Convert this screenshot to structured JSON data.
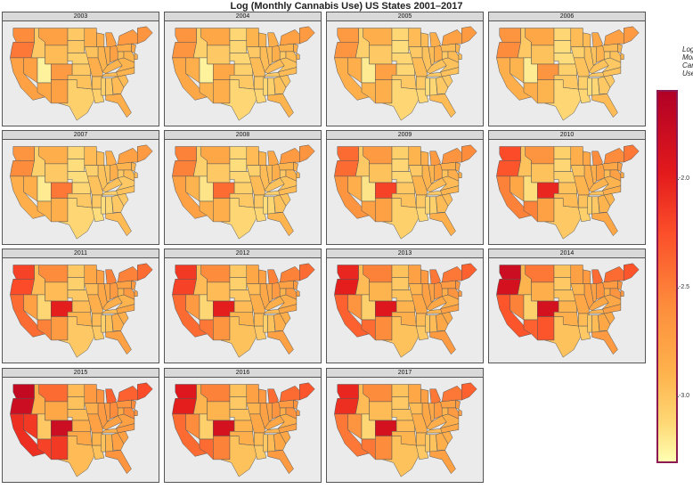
{
  "chart_data": {
    "type": "heatmap",
    "title": "Log (Monthly Cannabis Use) US States 2001–2017",
    "legend": {
      "title": "Log (Last Month Cannabis Use)",
      "position": "right",
      "ticks": [
        "-2.0",
        "-2.5",
        "-3.0"
      ],
      "tick_values": [
        -2.0,
        -2.5,
        -3.0
      ],
      "range": [
        -3.3,
        -1.6
      ],
      "palette": [
        "#ffffb2",
        "#fed976",
        "#feb24c",
        "#fd8d3c",
        "#fc4e2a",
        "#e31a1c",
        "#b10026"
      ]
    },
    "facets": [
      "2003",
      "2004",
      "2005",
      "2006",
      "2007",
      "2008",
      "2009",
      "2010",
      "2011",
      "2012",
      "2013",
      "2014",
      "2015",
      "2016",
      "2017"
    ],
    "regions": [
      "WA",
      "OR",
      "CA",
      "NV",
      "ID",
      "MT",
      "WY",
      "UT",
      "CO",
      "AZ",
      "NM",
      "ND",
      "SD",
      "NE",
      "KS",
      "OK",
      "TX",
      "MN",
      "IA",
      "MO",
      "AR",
      "LA",
      "WI",
      "IL",
      "MI",
      "IN",
      "OH",
      "KY",
      "TN",
      "MS",
      "AL",
      "GA",
      "FL",
      "SC",
      "NC",
      "VA",
      "WV",
      "PA",
      "NY",
      "NJ",
      "MD",
      "DE",
      "New England"
    ],
    "values": {
      "2003": [
        -2.45,
        -2.35,
        -2.6,
        -2.6,
        -2.9,
        -2.6,
        -2.8,
        -3.2,
        -2.55,
        -2.65,
        -2.6,
        -2.9,
        -2.9,
        -2.95,
        -2.9,
        -2.85,
        -2.95,
        -2.7,
        -2.85,
        -2.7,
        -2.85,
        -2.95,
        -2.7,
        -2.75,
        -2.6,
        -2.7,
        -2.6,
        -2.75,
        -2.8,
        -2.95,
        -2.9,
        -2.8,
        -2.7,
        -2.8,
        -2.75,
        -2.75,
        -2.8,
        -2.7,
        -2.55,
        -2.65,
        -2.75,
        -2.7,
        -2.5
      ],
      "2004": [
        -2.5,
        -2.5,
        -2.65,
        -2.7,
        -2.95,
        -2.65,
        -2.9,
        -3.2,
        -2.65,
        -2.75,
        -2.7,
        -3.0,
        -3.0,
        -3.0,
        -2.95,
        -2.9,
        -3.0,
        -2.75,
        -2.9,
        -2.8,
        -2.9,
        -3.0,
        -2.75,
        -2.8,
        -2.7,
        -2.8,
        -2.7,
        -2.8,
        -2.9,
        -3.0,
        -2.95,
        -2.85,
        -2.75,
        -2.85,
        -2.8,
        -2.85,
        -2.9,
        -2.75,
        -2.6,
        -2.7,
        -2.8,
        -2.75,
        -2.55
      ],
      "2005": [
        -2.55,
        -2.5,
        -2.7,
        -2.7,
        -2.95,
        -2.7,
        -2.9,
        -3.15,
        -2.6,
        -2.75,
        -2.7,
        -3.0,
        -3.05,
        -3.0,
        -3.0,
        -2.9,
        -3.0,
        -2.8,
        -2.9,
        -2.8,
        -2.9,
        -3.0,
        -2.8,
        -2.85,
        -2.7,
        -2.8,
        -2.7,
        -2.85,
        -2.9,
        -3.05,
        -3.0,
        -2.9,
        -2.8,
        -2.9,
        -2.85,
        -2.85,
        -2.9,
        -2.8,
        -2.6,
        -2.75,
        -2.8,
        -2.8,
        -2.55
      ],
      "2006": [
        -2.5,
        -2.45,
        -2.7,
        -2.75,
        -2.9,
        -2.65,
        -2.85,
        -3.15,
        -2.5,
        -2.7,
        -2.75,
        -3.0,
        -3.05,
        -3.05,
        -2.95,
        -2.9,
        -3.0,
        -2.8,
        -2.95,
        -2.85,
        -2.95,
        -3.0,
        -2.8,
        -2.85,
        -2.65,
        -2.85,
        -2.75,
        -2.85,
        -2.9,
        -3.05,
        -3.0,
        -2.9,
        -2.8,
        -2.9,
        -2.85,
        -2.9,
        -2.9,
        -2.8,
        -2.6,
        -2.75,
        -2.85,
        -2.75,
        -2.55
      ],
      "2007": [
        -2.5,
        -2.45,
        -2.7,
        -2.7,
        -2.95,
        -2.7,
        -2.9,
        -3.15,
        -2.35,
        -2.75,
        -2.7,
        -3.0,
        -3.05,
        -3.05,
        -3.0,
        -2.9,
        -3.0,
        -2.8,
        -2.95,
        -2.85,
        -2.9,
        -3.05,
        -2.8,
        -2.85,
        -2.7,
        -2.85,
        -2.7,
        -2.85,
        -2.95,
        -3.05,
        -3.0,
        -2.9,
        -2.8,
        -2.9,
        -2.85,
        -2.9,
        -2.9,
        -2.75,
        -2.6,
        -2.75,
        -2.8,
        -2.8,
        -2.55
      ],
      "2008": [
        -2.4,
        -2.4,
        -2.6,
        -2.75,
        -2.95,
        -2.65,
        -2.9,
        -3.1,
        -2.3,
        -2.7,
        -2.7,
        -3.0,
        -3.05,
        -3.0,
        -2.95,
        -2.9,
        -3.0,
        -2.8,
        -2.95,
        -2.8,
        -2.9,
        -3.0,
        -2.75,
        -2.8,
        -2.65,
        -2.8,
        -2.7,
        -2.85,
        -2.95,
        -3.05,
        -3.0,
        -2.85,
        -2.75,
        -2.85,
        -2.8,
        -2.85,
        -2.9,
        -2.75,
        -2.55,
        -2.7,
        -2.75,
        -2.75,
        -2.5
      ],
      "2009": [
        -2.3,
        -2.3,
        -2.5,
        -2.7,
        -2.9,
        -2.55,
        -2.85,
        -3.1,
        -2.1,
        -2.6,
        -2.6,
        -2.95,
        -3.0,
        -3.0,
        -2.9,
        -2.85,
        -2.95,
        -2.75,
        -2.9,
        -2.75,
        -2.9,
        -3.0,
        -2.7,
        -2.75,
        -2.55,
        -2.75,
        -2.65,
        -2.8,
        -2.9,
        -3.0,
        -2.95,
        -2.8,
        -2.7,
        -2.8,
        -2.75,
        -2.8,
        -2.85,
        -2.7,
        -2.5,
        -2.65,
        -2.7,
        -2.7,
        -2.45
      ],
      "2010": [
        -2.15,
        -2.2,
        -2.4,
        -2.65,
        -2.85,
        -2.5,
        -2.85,
        -3.05,
        -1.95,
        -2.4,
        -2.6,
        -2.95,
        -3.0,
        -2.95,
        -2.85,
        -2.8,
        -2.9,
        -2.7,
        -2.85,
        -2.75,
        -2.85,
        -2.95,
        -2.65,
        -2.7,
        -2.45,
        -2.7,
        -2.6,
        -2.75,
        -2.85,
        -2.95,
        -2.9,
        -2.75,
        -2.65,
        -2.75,
        -2.7,
        -2.75,
        -2.8,
        -2.65,
        -2.45,
        -2.6,
        -2.6,
        -2.65,
        -2.35
      ],
      "2011": [
        -2.1,
        -2.15,
        -2.3,
        -2.6,
        -2.8,
        -2.45,
        -2.8,
        -3.0,
        -1.9,
        -2.4,
        -2.55,
        -2.9,
        -2.95,
        -2.9,
        -2.8,
        -2.75,
        -2.9,
        -2.65,
        -2.8,
        -2.7,
        -2.8,
        -2.9,
        -2.6,
        -2.65,
        -2.4,
        -2.65,
        -2.55,
        -2.7,
        -2.8,
        -2.95,
        -2.85,
        -2.7,
        -2.6,
        -2.7,
        -2.65,
        -2.75,
        -2.75,
        -2.6,
        -2.4,
        -2.55,
        -2.55,
        -2.6,
        -2.3
      ],
      "2012": [
        -2.05,
        -2.1,
        -2.3,
        -2.55,
        -2.8,
        -2.45,
        -2.8,
        -3.0,
        -1.9,
        -2.35,
        -2.5,
        -2.9,
        -2.95,
        -2.9,
        -2.8,
        -2.75,
        -2.85,
        -2.65,
        -2.8,
        -2.7,
        -2.8,
        -2.9,
        -2.6,
        -2.65,
        -2.4,
        -2.65,
        -2.55,
        -2.7,
        -2.8,
        -2.95,
        -2.85,
        -2.7,
        -2.6,
        -2.7,
        -2.65,
        -2.7,
        -2.75,
        -2.6,
        -2.4,
        -2.55,
        -2.55,
        -2.6,
        -2.3
      ],
      "2013": [
        -1.95,
        -1.9,
        -2.25,
        -2.5,
        -2.8,
        -2.4,
        -2.75,
        -2.95,
        -1.85,
        -2.3,
        -2.45,
        -2.85,
        -2.9,
        -2.85,
        -2.75,
        -2.7,
        -2.85,
        -2.6,
        -2.75,
        -2.65,
        -2.8,
        -2.9,
        -2.55,
        -2.6,
        -2.35,
        -2.6,
        -2.5,
        -2.65,
        -2.75,
        -2.9,
        -2.8,
        -2.65,
        -2.55,
        -2.65,
        -2.6,
        -2.7,
        -2.7,
        -2.55,
        -2.35,
        -2.5,
        -2.5,
        -2.55,
        -2.25
      ],
      "2014": [
        -1.75,
        -1.8,
        -2.2,
        -2.4,
        -2.75,
        -2.35,
        -2.7,
        -2.95,
        -1.8,
        -2.25,
        -2.2,
        -2.85,
        -2.9,
        -2.85,
        -2.75,
        -2.7,
        -2.85,
        -2.6,
        -2.75,
        -2.65,
        -2.8,
        -2.9,
        -2.55,
        -2.6,
        -2.3,
        -2.6,
        -2.5,
        -2.65,
        -2.75,
        -2.9,
        -2.8,
        -2.65,
        -2.55,
        -2.65,
        -2.6,
        -2.65,
        -2.7,
        -2.55,
        -2.3,
        -2.5,
        -2.5,
        -2.55,
        -2.2
      ],
      "2015": [
        -1.7,
        -1.75,
        -2.0,
        -2.05,
        -2.7,
        -2.3,
        -2.65,
        -2.9,
        -1.75,
        -2.1,
        -2.05,
        -2.8,
        -2.85,
        -2.8,
        -2.7,
        -2.65,
        -2.8,
        -2.55,
        -2.7,
        -2.6,
        -2.75,
        -2.85,
        -2.5,
        -2.55,
        -2.25,
        -2.55,
        -2.45,
        -2.6,
        -2.7,
        -2.85,
        -2.75,
        -2.6,
        -2.5,
        -2.6,
        -2.55,
        -2.6,
        -2.65,
        -2.5,
        -2.25,
        -2.45,
        -2.45,
        -2.5,
        -2.15
      ],
      "2016": [
        -1.85,
        -1.9,
        -2.3,
        -2.45,
        -2.75,
        -2.4,
        -2.75,
        -2.95,
        -1.8,
        -2.3,
        -2.4,
        -2.85,
        -2.9,
        -2.85,
        -2.75,
        -2.7,
        -2.85,
        -2.6,
        -2.75,
        -2.65,
        -2.8,
        -2.9,
        -2.55,
        -2.6,
        -2.3,
        -2.6,
        -2.5,
        -2.65,
        -2.75,
        -2.9,
        -2.8,
        -2.65,
        -2.55,
        -2.65,
        -2.6,
        -2.7,
        -2.7,
        -2.55,
        -2.3,
        -2.5,
        -2.5,
        -2.55,
        -2.2
      ],
      "2017": [
        -1.95,
        -2.0,
        -2.35,
        -2.5,
        -2.8,
        -2.45,
        -2.8,
        -3.0,
        -1.8,
        -2.35,
        -2.45,
        -2.85,
        -2.9,
        -2.85,
        -2.8,
        -2.75,
        -2.85,
        -2.65,
        -2.8,
        -2.7,
        -2.8,
        -2.9,
        -2.6,
        -2.65,
        -2.35,
        -2.65,
        -2.55,
        -2.7,
        -2.8,
        -2.9,
        -2.85,
        -2.7,
        -2.6,
        -2.7,
        -2.65,
        -2.7,
        -2.75,
        -2.6,
        -2.35,
        -2.55,
        -2.55,
        -2.6,
        -2.25
      ]
    }
  }
}
